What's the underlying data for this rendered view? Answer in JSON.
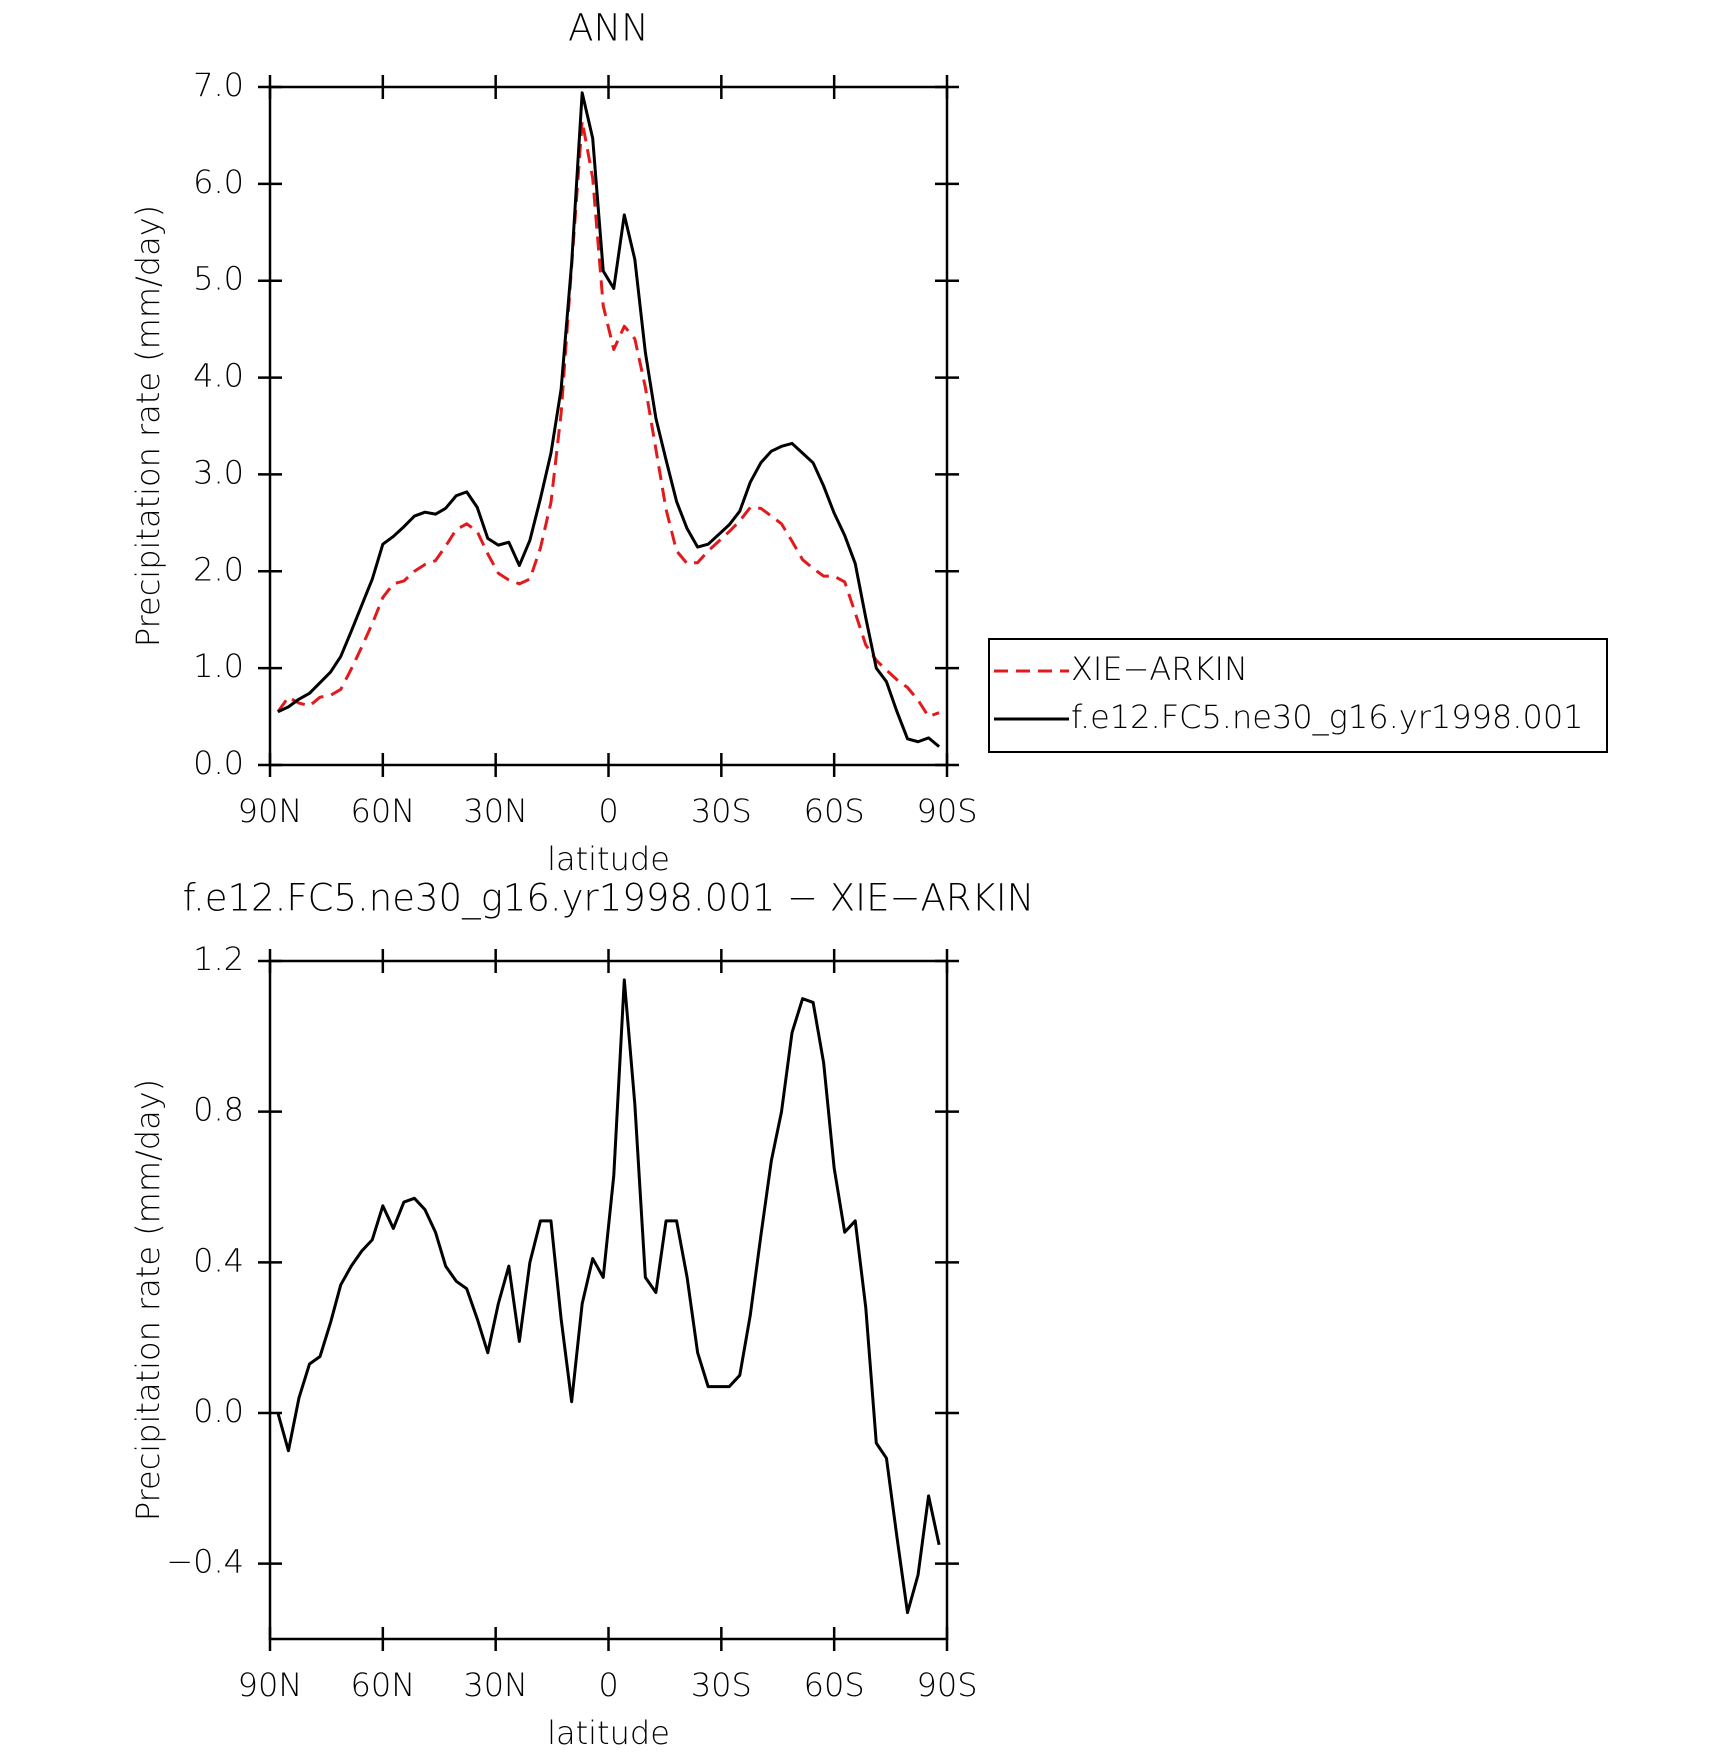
{
  "chart_data": [
    {
      "type": "line",
      "title": "ANN",
      "x_label": "latitude",
      "y_label": "Precipitation rate (mm/day)",
      "x": [
        87.9,
        85.1,
        82.3,
        79.5,
        76.7,
        73.9,
        71.2,
        68.4,
        65.6,
        62.8,
        60.0,
        57.2,
        54.4,
        51.6,
        48.8,
        46.0,
        43.3,
        40.5,
        37.7,
        34.9,
        32.1,
        29.3,
        26.5,
        23.7,
        20.9,
        18.1,
        15.3,
        12.6,
        9.8,
        7.0,
        4.2,
        1.4,
        -1.4,
        -4.2,
        -7.0,
        -9.8,
        -12.6,
        -15.3,
        -18.1,
        -20.9,
        -23.7,
        -26.5,
        -29.3,
        -32.1,
        -34.9,
        -37.7,
        -40.5,
        -43.3,
        -46.0,
        -48.8,
        -51.6,
        -54.4,
        -57.2,
        -60.0,
        -62.8,
        -65.6,
        -68.4,
        -71.2,
        -73.9,
        -76.7,
        -79.5,
        -82.3,
        -85.1,
        -87.9
      ],
      "series": [
        {
          "name": "XIE−ARKIN",
          "color": "#e31a1c",
          "line_style": "dashed",
          "values": [
            0.55,
            0.7,
            0.64,
            0.61,
            0.7,
            0.72,
            0.78,
            0.99,
            1.22,
            1.46,
            1.73,
            1.87,
            1.9,
            2.0,
            2.07,
            2.11,
            2.26,
            2.43,
            2.49,
            2.41,
            2.18,
            1.98,
            1.91,
            1.87,
            1.92,
            2.24,
            2.71,
            3.63,
            5.15,
            6.65,
            6.06,
            4.74,
            4.29,
            4.53,
            4.4,
            3.9,
            3.26,
            2.64,
            2.21,
            2.08,
            2.09,
            2.21,
            2.31,
            2.41,
            2.52,
            2.66,
            2.65,
            2.57,
            2.49,
            2.31,
            2.12,
            2.03,
            1.95,
            1.95,
            1.89,
            1.57,
            1.24,
            1.08,
            0.98,
            0.88,
            0.8,
            0.67,
            0.5,
            0.54
          ]
        },
        {
          "name": "f.e12.FC5.ne30_g16.yr1998.001",
          "color": "#000000",
          "line_style": "solid",
          "values": [
            0.55,
            0.6,
            0.68,
            0.74,
            0.85,
            0.96,
            1.12,
            1.38,
            1.65,
            1.92,
            2.28,
            2.36,
            2.46,
            2.57,
            2.61,
            2.59,
            2.65,
            2.78,
            2.82,
            2.66,
            2.34,
            2.27,
            2.3,
            2.06,
            2.32,
            2.75,
            3.22,
            3.88,
            5.18,
            6.94,
            6.47,
            5.1,
            4.92,
            5.68,
            5.22,
            4.26,
            3.58,
            3.15,
            2.72,
            2.44,
            2.25,
            2.28,
            2.38,
            2.48,
            2.62,
            2.92,
            3.12,
            3.24,
            3.29,
            3.32,
            3.22,
            3.12,
            2.88,
            2.6,
            2.37,
            2.08,
            1.52,
            1.0,
            0.86,
            0.55,
            0.27,
            0.24,
            0.28,
            0.19
          ]
        }
      ],
      "xlim": [
        90,
        -90
      ],
      "xticks": [
        {
          "value": 90,
          "label": "90N"
        },
        {
          "value": 60,
          "label": "60N"
        },
        {
          "value": 30,
          "label": "30N"
        },
        0,
        {
          "value": -30,
          "label": "30S"
        },
        {
          "value": -60,
          "label": "60S"
        },
        {
          "value": -90,
          "label": "90S"
        }
      ],
      "ylim": [
        0,
        7
      ],
      "yticks": [
        {
          "value": 0,
          "label": "0.0"
        },
        {
          "value": 1,
          "label": "1.0"
        },
        {
          "value": 2,
          "label": "2.0"
        },
        {
          "value": 3,
          "label": "3.0"
        },
        {
          "value": 4,
          "label": "4.0"
        },
        {
          "value": 5,
          "label": "5.0"
        },
        {
          "value": 6,
          "label": "6.0"
        },
        {
          "value": 7,
          "label": "7.0"
        }
      ],
      "legend": "outside-right"
    },
    {
      "type": "line",
      "title": "f.e12.FC5.ne30_g16.yr1998.001 − XIE−ARKIN",
      "x_label": "latitude",
      "y_label": "Precipitation rate (mm/day)",
      "x": [
        87.9,
        85.1,
        82.3,
        79.5,
        76.7,
        73.9,
        71.2,
        68.4,
        65.6,
        62.8,
        60.0,
        57.2,
        54.4,
        51.6,
        48.8,
        46.0,
        43.3,
        40.5,
        37.7,
        34.9,
        32.1,
        29.3,
        26.5,
        23.7,
        20.9,
        18.1,
        15.3,
        12.6,
        9.8,
        7.0,
        4.2,
        1.4,
        -1.4,
        -4.2,
        -7.0,
        -9.8,
        -12.6,
        -15.3,
        -18.1,
        -20.9,
        -23.7,
        -26.5,
        -29.3,
        -32.1,
        -34.9,
        -37.7,
        -40.5,
        -43.3,
        -46.0,
        -48.8,
        -51.6,
        -54.4,
        -57.2,
        -60.0,
        -62.8,
        -65.6,
        -68.4,
        -71.2,
        -73.9,
        -76.7,
        -79.5,
        -82.3,
        -85.1,
        -87.9
      ],
      "series": [
        {
          "color": "#000000",
          "line_style": "solid",
          "values": [
            0.0,
            -0.1,
            0.04,
            0.13,
            0.15,
            0.24,
            0.34,
            0.39,
            0.43,
            0.46,
            0.55,
            0.49,
            0.56,
            0.57,
            0.54,
            0.48,
            0.39,
            0.35,
            0.33,
            0.25,
            0.16,
            0.29,
            0.39,
            0.19,
            0.4,
            0.51,
            0.51,
            0.25,
            0.03,
            0.29,
            0.41,
            0.36,
            0.63,
            1.15,
            0.82,
            0.36,
            0.32,
            0.51,
            0.51,
            0.36,
            0.16,
            0.07,
            0.07,
            0.07,
            0.1,
            0.26,
            0.47,
            0.67,
            0.8,
            1.01,
            1.1,
            1.09,
            0.93,
            0.65,
            0.48,
            0.51,
            0.28,
            -0.08,
            -0.12,
            -0.33,
            -0.53,
            -0.43,
            -0.22,
            -0.35
          ]
        }
      ],
      "xlim": [
        90,
        -90
      ],
      "xticks": [
        {
          "value": 90,
          "label": "90N"
        },
        {
          "value": 60,
          "label": "60N"
        },
        {
          "value": 30,
          "label": "30N"
        },
        0,
        {
          "value": -30,
          "label": "30S"
        },
        {
          "value": -60,
          "label": "60S"
        },
        {
          "value": -90,
          "label": "90S"
        }
      ],
      "ylim": [
        -0.6,
        1.2
      ],
      "yticks": [
        {
          "value": -0.4,
          "label": "−0.4"
        },
        {
          "value": 0,
          "label": "0.0"
        },
        0.4,
        0.8,
        1.2
      ]
    }
  ]
}
